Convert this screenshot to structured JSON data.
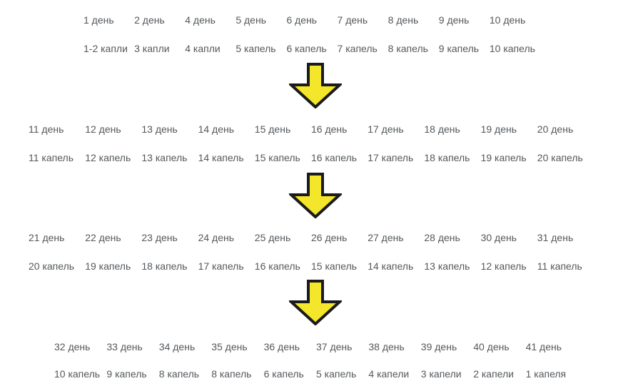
{
  "theme": {
    "background": "#ffffff",
    "text_color": "#54585c",
    "arrow_fill": "#f4e62a",
    "arrow_stroke": "#1b1b1b"
  },
  "arrow_icon": "down-arrow",
  "sections": [
    {
      "days": [
        "1 день",
        "2 день",
        "4 день",
        "5 день",
        "6 день",
        "7 день",
        "8 день",
        "9 день",
        "10 день"
      ],
      "drops": [
        "1-2 капли",
        "3 капли",
        "4 капли",
        "5 капель",
        "6 капель",
        "7 капель",
        "8 капель",
        "9 капель",
        "10 капель"
      ]
    },
    {
      "days": [
        "11 день",
        "12 день",
        "13 день",
        "14 день",
        "15 день",
        "16 день",
        "17 день",
        "18 день",
        "19 день",
        "20 день"
      ],
      "drops": [
        "11 капель",
        "12 капель",
        "13 капель",
        "14 капель",
        "15 капель",
        "16 капель",
        "17 капель",
        "18 капель",
        "19 капель",
        "20 капель"
      ]
    },
    {
      "days": [
        "21 день",
        "22 день",
        "23 день",
        "24 день",
        "25 день",
        "26 день",
        "27 день",
        "28 день",
        "30 день",
        "31 день"
      ],
      "drops": [
        "20 капель",
        "19 капель",
        "18 капель",
        "17 капель",
        "16 капель",
        "15 капель",
        "14 капель",
        "13 капель",
        "12 капель",
        "11 капель"
      ]
    },
    {
      "days": [
        "32 день",
        "33 день",
        "34 день",
        "35 день",
        "36 день",
        "37 день",
        "38 день",
        "39 день",
        "40 день",
        "41 день"
      ],
      "drops": [
        "10 капель",
        "9 капель",
        "8 капель",
        "8 капель",
        "6 капель",
        "5 капель",
        "4 капели",
        "3 капели",
        "2 капели",
        "1 капеля"
      ]
    }
  ]
}
